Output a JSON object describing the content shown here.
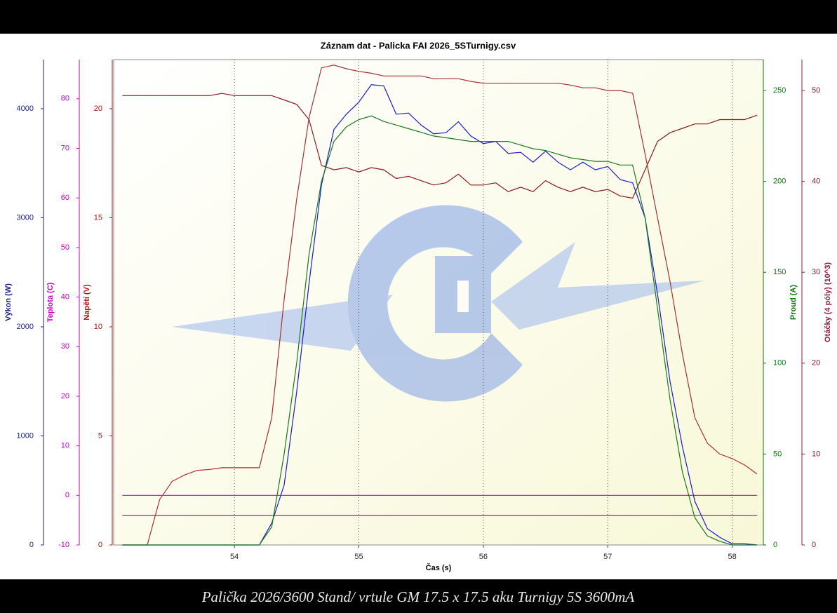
{
  "chart_data": {
    "type": "line",
    "title": "Záznam dat - Palicka FAI 2026_5STurnigy.csv",
    "x_label": "Čas (s)",
    "caption": "Palička 2026/3600 Stand/ vrtule GM 17.5 x 17.5 aku Turnigy 5S 3600mA",
    "xlim": [
      53.03,
      58.25
    ],
    "xticks": [
      54,
      55,
      56,
      57,
      58
    ],
    "grid": true,
    "axes": [
      {
        "label": "Výkon (W)",
        "color": "#1a1a8c",
        "lim": [
          0,
          4450
        ],
        "ticks": [
          0,
          1000,
          2000,
          3000,
          4000
        ]
      },
      {
        "label": "Teplota (C)",
        "color": "#cc00cc",
        "lim": [
          -10,
          87.9
        ],
        "ticks": [
          -10,
          0,
          10,
          20,
          30,
          40,
          50,
          60,
          70,
          80
        ]
      },
      {
        "label": "Napětí (V)",
        "color": "#b01010",
        "lim": [
          0,
          22.25
        ],
        "ticks": [
          0,
          5,
          10,
          15,
          20
        ]
      },
      {
        "label": "Proud (A)",
        "color": "#0a7a0a",
        "lim": [
          0,
          267
        ],
        "ticks": [
          0,
          50,
          100,
          150,
          200,
          250
        ]
      },
      {
        "label": "Otáčky (4 póly) (10^3)",
        "color": "#8b1a3a",
        "lim": [
          0,
          53.4
        ],
        "ticks": [
          0,
          10,
          20,
          30,
          40,
          50
        ]
      }
    ],
    "x": [
      53.1,
      53.2,
      53.3,
      53.4,
      53.5,
      53.6,
      53.7,
      53.8,
      53.9,
      54.0,
      54.1,
      54.2,
      54.3,
      54.4,
      54.5,
      54.6,
      54.7,
      54.8,
      54.9,
      55.0,
      55.1,
      55.2,
      55.3,
      55.4,
      55.5,
      55.6,
      55.7,
      55.8,
      55.9,
      56.0,
      56.1,
      56.2,
      56.3,
      56.4,
      56.5,
      56.6,
      56.7,
      56.8,
      56.9,
      57.0,
      57.1,
      57.2,
      57.3,
      57.4,
      57.5,
      57.6,
      57.7,
      57.8,
      57.9,
      58.0,
      58.1,
      58.2
    ],
    "series": [
      {
        "axis": 1,
        "color": "#cc00cc",
        "values": [
          0,
          0,
          0,
          0,
          0,
          0,
          0,
          0,
          0,
          0,
          0,
          0,
          0,
          0,
          0,
          0,
          0,
          0,
          0,
          0,
          0,
          0,
          0,
          0,
          0,
          0,
          0,
          0,
          0,
          0,
          0,
          0,
          0,
          0,
          0,
          0,
          0,
          0,
          0,
          0,
          0,
          0,
          0,
          0,
          0,
          0,
          0,
          0,
          0,
          0,
          0,
          0
        ]
      },
      {
        "axis": 1,
        "color": "#cc00cc",
        "values": [
          -4,
          -4,
          -4,
          -4,
          -4,
          -4,
          -4,
          -4,
          -4,
          -4,
          -4,
          -4,
          -4,
          -4,
          -4,
          -4,
          -4,
          -4,
          -4,
          -4,
          -4,
          -4,
          -4,
          -4,
          -4,
          -4,
          -4,
          -4,
          -4,
          -4,
          -4,
          -4,
          -4,
          -4,
          -4,
          -4,
          -4,
          -4,
          -4,
          -4,
          -4,
          -4,
          -4,
          -4,
          -4,
          -4,
          -4,
          -4,
          -4,
          -4,
          -4,
          -4
        ]
      },
      {
        "axis": 2,
        "color": "#8b1a1a",
        "values": [
          20.6,
          20.6,
          20.6,
          20.6,
          20.6,
          20.6,
          20.6,
          20.6,
          20.7,
          20.6,
          20.6,
          20.6,
          20.6,
          20.4,
          20.2,
          19.5,
          17.4,
          17.2,
          17.3,
          17.1,
          17.3,
          17.2,
          16.8,
          16.9,
          16.7,
          16.5,
          16.6,
          17.0,
          16.5,
          16.5,
          16.6,
          16.2,
          16.4,
          16.2,
          16.7,
          16.4,
          16.2,
          16.4,
          16.2,
          16.3,
          16.0,
          15.9,
          17.2,
          18.5,
          18.9,
          19.1,
          19.3,
          19.3,
          19.5,
          19.5,
          19.5,
          19.7
        ]
      },
      {
        "axis": 4,
        "color": "#a83030",
        "values": [
          0,
          0,
          0,
          5,
          7,
          7.7,
          8.2,
          8.3,
          8.5,
          8.5,
          8.5,
          8.5,
          14,
          27,
          38,
          47,
          52.5,
          52.8,
          52.4,
          52.1,
          51.9,
          51.6,
          51.6,
          51.6,
          51.6,
          51.3,
          51.3,
          51.3,
          51.0,
          50.8,
          50.8,
          50.8,
          50.8,
          50.8,
          50.8,
          50.8,
          50.6,
          50.3,
          50.3,
          50.0,
          50.0,
          49.7,
          43,
          36,
          29,
          21,
          14,
          11.2,
          10,
          9.5,
          8.8,
          7.8
        ]
      },
      {
        "axis": 0,
        "color": "#1a1acc",
        "values": [
          0,
          0,
          0,
          0,
          0,
          0,
          0,
          0,
          0,
          0,
          0,
          0,
          200,
          550,
          1400,
          2400,
          3300,
          3810,
          3950,
          4060,
          4220,
          4210,
          3950,
          3960,
          3850,
          3770,
          3780,
          3880,
          3750,
          3680,
          3700,
          3590,
          3600,
          3510,
          3610,
          3510,
          3440,
          3510,
          3440,
          3470,
          3350,
          3320,
          3000,
          2300,
          1500,
          900,
          400,
          150,
          70,
          10,
          10,
          0
        ]
      },
      {
        "axis": 3,
        "color": "#1a7a1a",
        "values": [
          0,
          0,
          0,
          0,
          0,
          0,
          0,
          0,
          0,
          0,
          0,
          0,
          10,
          50,
          100,
          160,
          200,
          222,
          230,
          234,
          236,
          233,
          231,
          229,
          227,
          225,
          224,
          223,
          222,
          222,
          222,
          222,
          220,
          218,
          217,
          215,
          213,
          212,
          211,
          211,
          209,
          209,
          180,
          130,
          80,
          40,
          15,
          5,
          2,
          0,
          0,
          0
        ]
      }
    ]
  }
}
